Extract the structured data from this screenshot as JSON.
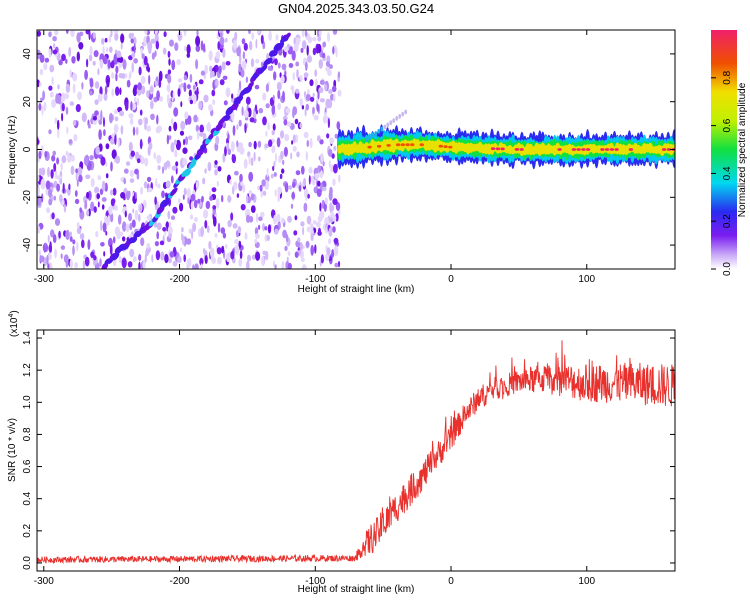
{
  "title": "GN04.2025.343.03.50.G24",
  "colors": {
    "snr_line": "#e8302c",
    "spectrogram_noise": "#7a1ef0",
    "spectrogram_signal": "#e8302c"
  },
  "chart_data": [
    {
      "type": "heatmap",
      "name": "spectrogram",
      "xlabel": "Height of straight line (km)",
      "ylabel": "Frequency (Hz)",
      "xlim": [
        -305,
        165
      ],
      "ylim": [
        -50,
        50
      ],
      "xticks": [
        -300,
        -200,
        -100,
        0,
        100
      ],
      "yticks": [
        -40,
        -20,
        0,
        20,
        40
      ],
      "xtick_labels": [
        "-300",
        "-200",
        "-100",
        "0",
        "100"
      ],
      "ytick_labels": [
        "-40",
        "-20",
        "0",
        "20",
        "40"
      ],
      "noise_region_x": [
        -305,
        -82
      ],
      "signal_trend": [
        [
          -82,
          0
        ],
        [
          -60,
          1
        ],
        [
          -40,
          2
        ],
        [
          -20,
          2
        ],
        [
          0,
          1
        ],
        [
          50,
          0
        ],
        [
          100,
          0
        ],
        [
          165,
          0
        ]
      ],
      "aliased_track": [
        [
          -255,
          -48
        ],
        [
          -220,
          -30
        ],
        [
          -190,
          -5
        ],
        [
          -160,
          18
        ],
        [
          -120,
          48
        ]
      ],
      "colorbar": {
        "label": "Normalized spectral amplitude",
        "range": [
          0,
          1
        ],
        "ticks": [
          0.0,
          0.2,
          0.4,
          0.6,
          0.8
        ],
        "tick_labels": [
          "0.0",
          "0.2",
          "0.4",
          "0.6",
          "0.8"
        ]
      }
    },
    {
      "type": "line",
      "name": "snr",
      "xlabel": "Height of straight line (km)",
      "ylabel": "SNR (10 * v/v)",
      "yexp": "(x10",
      "yexp_sup": "4",
      "yexp_close": ")",
      "xlim": [
        -305,
        165
      ],
      "ylim": [
        -0.05,
        1.45
      ],
      "xticks": [
        -300,
        -200,
        -100,
        0,
        100
      ],
      "yticks": [
        0.0,
        0.2,
        0.4,
        0.6,
        0.8,
        1.0,
        1.2,
        1.4
      ],
      "xtick_labels": [
        "-300",
        "-200",
        "-100",
        "0",
        "100"
      ],
      "ytick_labels": [
        "0.0",
        "0.2",
        "0.4",
        "0.6",
        "0.8",
        "1.0",
        "1.2",
        "1.4"
      ],
      "trend": [
        [
          -305,
          0.02
        ],
        [
          -70,
          0.03
        ],
        [
          -65,
          0.1
        ],
        [
          -55,
          0.18
        ],
        [
          -40,
          0.35
        ],
        [
          -30,
          0.45
        ],
        [
          -20,
          0.55
        ],
        [
          -10,
          0.67
        ],
        [
          0,
          0.78
        ],
        [
          10,
          0.92
        ],
        [
          20,
          1.02
        ],
        [
          30,
          1.08
        ],
        [
          50,
          1.13
        ],
        [
          70,
          1.15
        ],
        [
          100,
          1.12
        ],
        [
          130,
          1.12
        ],
        [
          165,
          1.1
        ]
      ],
      "noise_amplitude": [
        [
          -305,
          0.02
        ],
        [
          -70,
          0.02
        ],
        [
          -60,
          0.1
        ],
        [
          -30,
          0.1
        ],
        [
          0,
          0.08
        ],
        [
          40,
          0.07
        ],
        [
          100,
          0.12
        ],
        [
          165,
          0.14
        ]
      ]
    }
  ]
}
